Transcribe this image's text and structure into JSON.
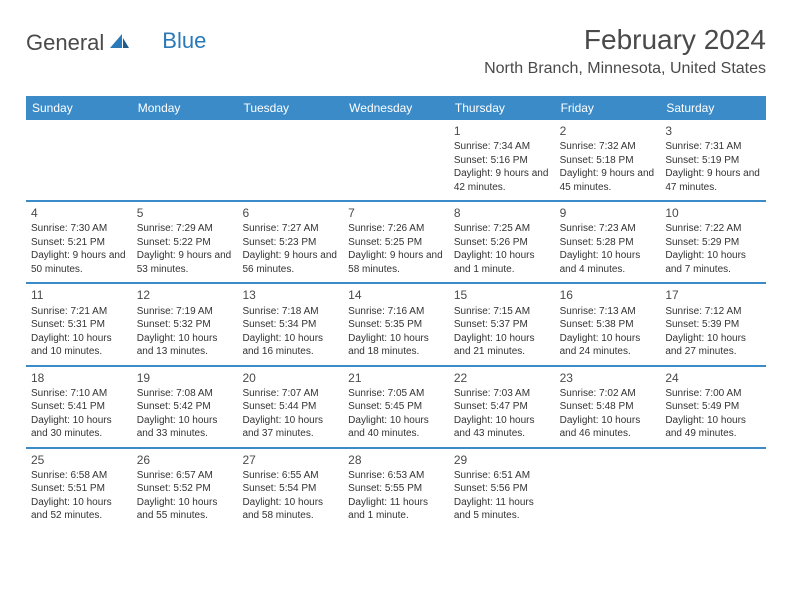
{
  "logo": {
    "part1": "General",
    "part2": "Blue"
  },
  "title": "February 2024",
  "location": "North Branch, Minnesota, United States",
  "weekdays": [
    "Sunday",
    "Monday",
    "Tuesday",
    "Wednesday",
    "Thursday",
    "Friday",
    "Saturday"
  ],
  "colors": {
    "header_bg": "#3b8bc9",
    "header_text": "#ffffff",
    "divider": "#3b8bc9",
    "text": "#333333",
    "title": "#4a4a4a",
    "logo_blue": "#2a7ab9"
  },
  "calendar_type": "month-grid",
  "weeks": [
    [
      {
        "num": "",
        "sunrise": "",
        "sunset": "",
        "daylight": ""
      },
      {
        "num": "",
        "sunrise": "",
        "sunset": "",
        "daylight": ""
      },
      {
        "num": "",
        "sunrise": "",
        "sunset": "",
        "daylight": ""
      },
      {
        "num": "",
        "sunrise": "",
        "sunset": "",
        "daylight": ""
      },
      {
        "num": "1",
        "sunrise": "Sunrise: 7:34 AM",
        "sunset": "Sunset: 5:16 PM",
        "daylight": "Daylight: 9 hours and 42 minutes."
      },
      {
        "num": "2",
        "sunrise": "Sunrise: 7:32 AM",
        "sunset": "Sunset: 5:18 PM",
        "daylight": "Daylight: 9 hours and 45 minutes."
      },
      {
        "num": "3",
        "sunrise": "Sunrise: 7:31 AM",
        "sunset": "Sunset: 5:19 PM",
        "daylight": "Daylight: 9 hours and 47 minutes."
      }
    ],
    [
      {
        "num": "4",
        "sunrise": "Sunrise: 7:30 AM",
        "sunset": "Sunset: 5:21 PM",
        "daylight": "Daylight: 9 hours and 50 minutes."
      },
      {
        "num": "5",
        "sunrise": "Sunrise: 7:29 AM",
        "sunset": "Sunset: 5:22 PM",
        "daylight": "Daylight: 9 hours and 53 minutes."
      },
      {
        "num": "6",
        "sunrise": "Sunrise: 7:27 AM",
        "sunset": "Sunset: 5:23 PM",
        "daylight": "Daylight: 9 hours and 56 minutes."
      },
      {
        "num": "7",
        "sunrise": "Sunrise: 7:26 AM",
        "sunset": "Sunset: 5:25 PM",
        "daylight": "Daylight: 9 hours and 58 minutes."
      },
      {
        "num": "8",
        "sunrise": "Sunrise: 7:25 AM",
        "sunset": "Sunset: 5:26 PM",
        "daylight": "Daylight: 10 hours and 1 minute."
      },
      {
        "num": "9",
        "sunrise": "Sunrise: 7:23 AM",
        "sunset": "Sunset: 5:28 PM",
        "daylight": "Daylight: 10 hours and 4 minutes."
      },
      {
        "num": "10",
        "sunrise": "Sunrise: 7:22 AM",
        "sunset": "Sunset: 5:29 PM",
        "daylight": "Daylight: 10 hours and 7 minutes."
      }
    ],
    [
      {
        "num": "11",
        "sunrise": "Sunrise: 7:21 AM",
        "sunset": "Sunset: 5:31 PM",
        "daylight": "Daylight: 10 hours and 10 minutes."
      },
      {
        "num": "12",
        "sunrise": "Sunrise: 7:19 AM",
        "sunset": "Sunset: 5:32 PM",
        "daylight": "Daylight: 10 hours and 13 minutes."
      },
      {
        "num": "13",
        "sunrise": "Sunrise: 7:18 AM",
        "sunset": "Sunset: 5:34 PM",
        "daylight": "Daylight: 10 hours and 16 minutes."
      },
      {
        "num": "14",
        "sunrise": "Sunrise: 7:16 AM",
        "sunset": "Sunset: 5:35 PM",
        "daylight": "Daylight: 10 hours and 18 minutes."
      },
      {
        "num": "15",
        "sunrise": "Sunrise: 7:15 AM",
        "sunset": "Sunset: 5:37 PM",
        "daylight": "Daylight: 10 hours and 21 minutes."
      },
      {
        "num": "16",
        "sunrise": "Sunrise: 7:13 AM",
        "sunset": "Sunset: 5:38 PM",
        "daylight": "Daylight: 10 hours and 24 minutes."
      },
      {
        "num": "17",
        "sunrise": "Sunrise: 7:12 AM",
        "sunset": "Sunset: 5:39 PM",
        "daylight": "Daylight: 10 hours and 27 minutes."
      }
    ],
    [
      {
        "num": "18",
        "sunrise": "Sunrise: 7:10 AM",
        "sunset": "Sunset: 5:41 PM",
        "daylight": "Daylight: 10 hours and 30 minutes."
      },
      {
        "num": "19",
        "sunrise": "Sunrise: 7:08 AM",
        "sunset": "Sunset: 5:42 PM",
        "daylight": "Daylight: 10 hours and 33 minutes."
      },
      {
        "num": "20",
        "sunrise": "Sunrise: 7:07 AM",
        "sunset": "Sunset: 5:44 PM",
        "daylight": "Daylight: 10 hours and 37 minutes."
      },
      {
        "num": "21",
        "sunrise": "Sunrise: 7:05 AM",
        "sunset": "Sunset: 5:45 PM",
        "daylight": "Daylight: 10 hours and 40 minutes."
      },
      {
        "num": "22",
        "sunrise": "Sunrise: 7:03 AM",
        "sunset": "Sunset: 5:47 PM",
        "daylight": "Daylight: 10 hours and 43 minutes."
      },
      {
        "num": "23",
        "sunrise": "Sunrise: 7:02 AM",
        "sunset": "Sunset: 5:48 PM",
        "daylight": "Daylight: 10 hours and 46 minutes."
      },
      {
        "num": "24",
        "sunrise": "Sunrise: 7:00 AM",
        "sunset": "Sunset: 5:49 PM",
        "daylight": "Daylight: 10 hours and 49 minutes."
      }
    ],
    [
      {
        "num": "25",
        "sunrise": "Sunrise: 6:58 AM",
        "sunset": "Sunset: 5:51 PM",
        "daylight": "Daylight: 10 hours and 52 minutes."
      },
      {
        "num": "26",
        "sunrise": "Sunrise: 6:57 AM",
        "sunset": "Sunset: 5:52 PM",
        "daylight": "Daylight: 10 hours and 55 minutes."
      },
      {
        "num": "27",
        "sunrise": "Sunrise: 6:55 AM",
        "sunset": "Sunset: 5:54 PM",
        "daylight": "Daylight: 10 hours and 58 minutes."
      },
      {
        "num": "28",
        "sunrise": "Sunrise: 6:53 AM",
        "sunset": "Sunset: 5:55 PM",
        "daylight": "Daylight: 11 hours and 1 minute."
      },
      {
        "num": "29",
        "sunrise": "Sunrise: 6:51 AM",
        "sunset": "Sunset: 5:56 PM",
        "daylight": "Daylight: 11 hours and 5 minutes."
      },
      {
        "num": "",
        "sunrise": "",
        "sunset": "",
        "daylight": ""
      },
      {
        "num": "",
        "sunrise": "",
        "sunset": "",
        "daylight": ""
      }
    ]
  ]
}
